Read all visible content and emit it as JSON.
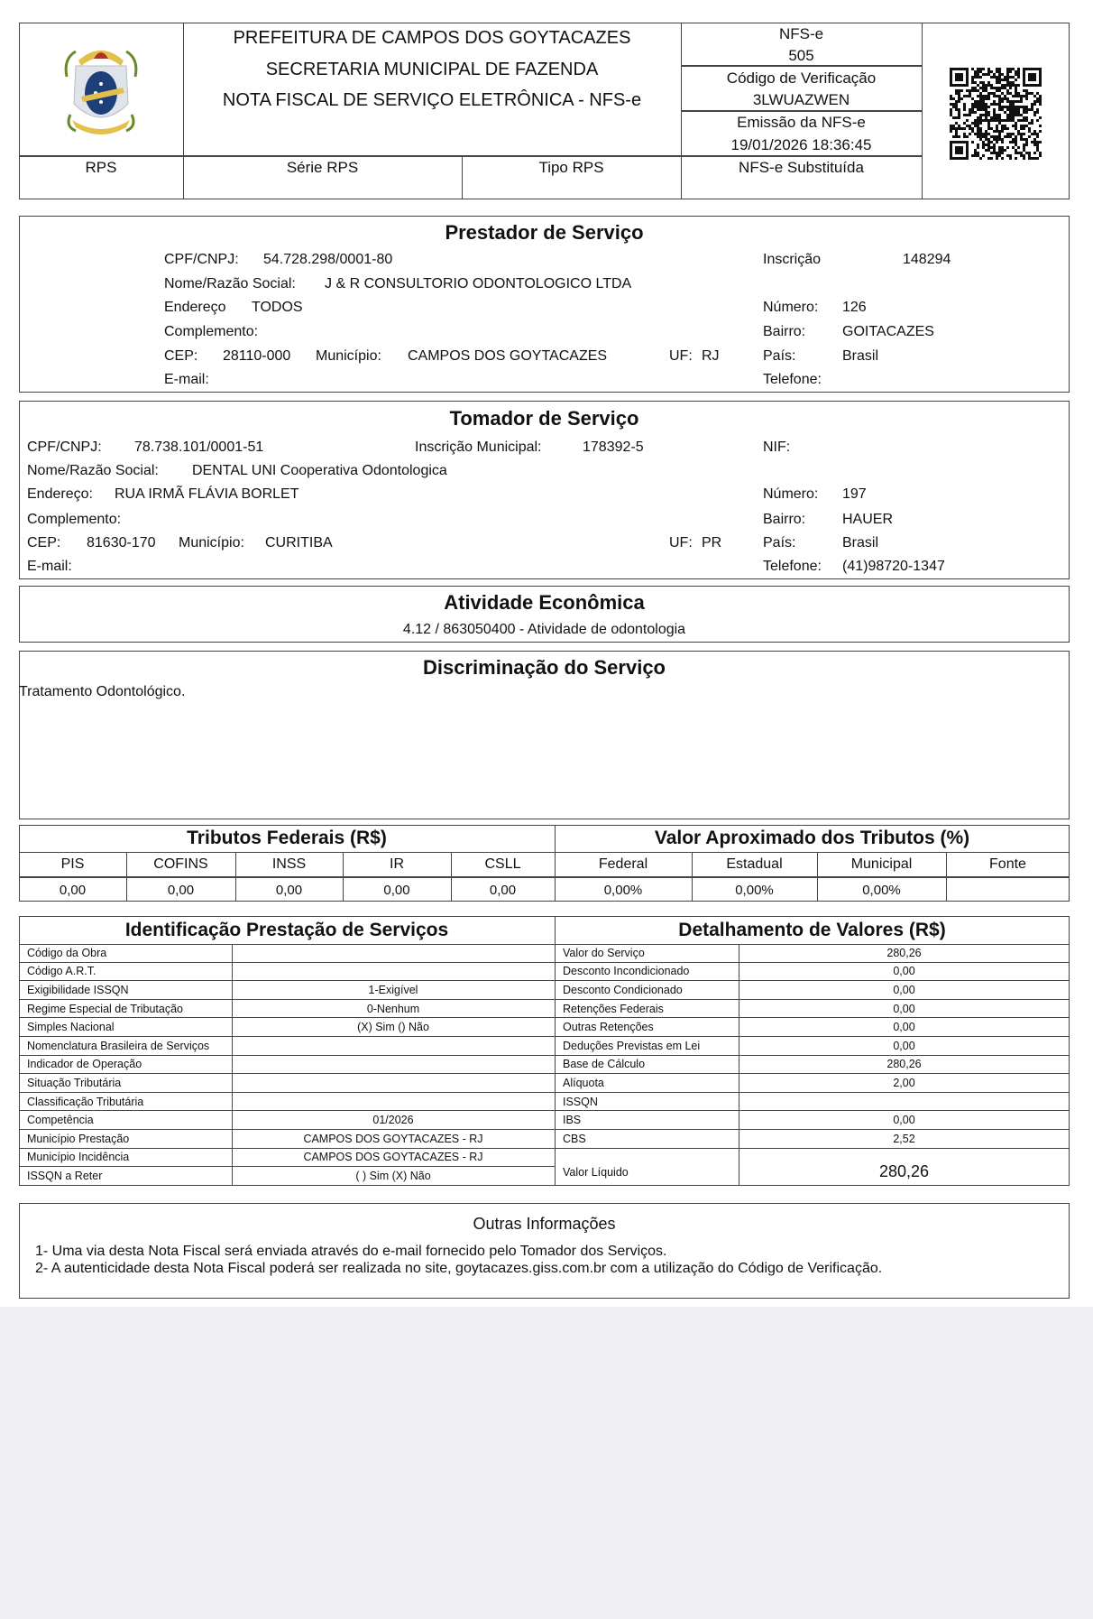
{
  "header": {
    "line1": "PREFEITURA DE CAMPOS DOS GOYTACAZES",
    "line2": "SECRETARIA MUNICIPAL DE FAZENDA",
    "line3": "NOTA FISCAL DE SERVIÇO ELETRÔNICA - NFS-e",
    "nfse_label": "NFS-e",
    "nfse_number": "505",
    "code_label": "Código de Verificação",
    "code_value": "3LWUAZWEN",
    "emission_label": "Emissão da NFS-e",
    "emission_value": "19/01/2026 18:36:45",
    "rps": "RPS",
    "serie_rps": "Série RPS",
    "tipo_rps": "Tipo RPS",
    "substituida": "NFS-e Substituída"
  },
  "prestador": {
    "title": "Prestador de Serviço",
    "cnpj_label": "CPF/CNPJ:",
    "cnpj": "54.728.298/0001-80",
    "inscricao_label": "Inscrição",
    "inscricao": "148294",
    "nome_label": "Nome/Razão Social:",
    "nome": "J & R CONSULTORIO ODONTOLOGICO LTDA",
    "endereco_label": "Endereço",
    "endereco": "TODOS",
    "numero_label": "Número:",
    "numero": "126",
    "complemento_label": "Complemento:",
    "bairro_label": "Bairro:",
    "bairro": "GOITACAZES",
    "cep_label": "CEP:",
    "cep": "28110-000",
    "municipio_label": "Município:",
    "municipio": "CAMPOS DOS GOYTACAZES",
    "uf_label": "UF:",
    "uf": "RJ",
    "pais_label": "País:",
    "pais": "Brasil",
    "email_label": "E-mail:",
    "telefone_label": "Telefone:"
  },
  "tomador": {
    "title": "Tomador de Serviço",
    "cnpj_label": "CPF/CNPJ:",
    "cnpj": "78.738.101/0001-51",
    "inscricao_label": "Inscrição Municipal:",
    "inscricao": "178392-5",
    "nif_label": "NIF:",
    "nome_label": "Nome/Razão Social:",
    "nome": "DENTAL UNI Cooperativa Odontologica",
    "endereco_label": "Endereço:",
    "endereco": "RUA IRMÃ FLÁVIA BORLET",
    "numero_label": "Número:",
    "numero": "197",
    "complemento_label": "Complemento:",
    "bairro_label": "Bairro:",
    "bairro": "HAUER",
    "cep_label": "CEP:",
    "cep": "81630-170",
    "municipio_label": "Município:",
    "municipio": "CURITIBA",
    "uf_label": "UF:",
    "uf": "PR",
    "pais_label": "País:",
    "pais": "Brasil",
    "email_label": "E-mail:",
    "telefone_label": "Telefone:",
    "telefone": "(41)98720-1347"
  },
  "atividade": {
    "title": "Atividade Econômica",
    "value": "4.12 / 863050400 - Atividade de odontologia"
  },
  "discriminacao": {
    "title": "Discriminação do Serviço",
    "text": "Tratamento Odontológico."
  },
  "tributos": {
    "federais_title": "Tributos Federais (R$)",
    "aprox_title": "Valor Aproximado dos Tributos (%)",
    "columns": [
      "PIS",
      "COFINS",
      "INSS",
      "IR",
      "CSLL",
      "Federal",
      "Estadual",
      "Municipal",
      "Fonte"
    ],
    "values": [
      "0,00",
      "0,00",
      "0,00",
      "0,00",
      "0,00",
      "0,00%",
      "0,00%",
      "0,00%",
      ""
    ]
  },
  "identificacao": {
    "title": "Identificação Prestação de Serviços",
    "rows": [
      {
        "label": "Código da Obra",
        "value": ""
      },
      {
        "label": "Código A.R.T.",
        "value": ""
      },
      {
        "label": "Exigibilidade ISSQN",
        "value": "1-Exigível"
      },
      {
        "label": "Regime Especial de Tributação",
        "value": "0-Nenhum"
      },
      {
        "label": "Simples Nacional",
        "value": "(X) Sim () Não"
      },
      {
        "label": "Nomenclatura Brasileira de Serviços",
        "value": ""
      },
      {
        "label": "Indicador de Operação",
        "value": ""
      },
      {
        "label": "Situação Tributária",
        "value": ""
      },
      {
        "label": "Classificação Tributária",
        "value": ""
      },
      {
        "label": "Competência",
        "value": "01/2026"
      },
      {
        "label": "Município Prestação",
        "value": "CAMPOS DOS GOYTACAZES - RJ"
      },
      {
        "label": "Município Incidência",
        "value": "CAMPOS DOS GOYTACAZES - RJ"
      },
      {
        "label": "ISSQN a Reter",
        "value": "( ) Sim (X) Não"
      }
    ]
  },
  "detalhamento": {
    "title": "Detalhamento de Valores (R$)",
    "rows": [
      {
        "label": "Valor do Serviço",
        "value": "280,26"
      },
      {
        "label": "Desconto Incondicionado",
        "value": "0,00"
      },
      {
        "label": "Desconto Condicionado",
        "value": "0,00"
      },
      {
        "label": "Retenções Federais",
        "value": "0,00"
      },
      {
        "label": "Outras Retenções",
        "value": "0,00"
      },
      {
        "label": "Deduções Previstas em Lei",
        "value": "0,00"
      },
      {
        "label": "Base de Cálculo",
        "value": "280,26"
      },
      {
        "label": "Alíquota",
        "value": "2,00"
      },
      {
        "label": "ISSQN",
        "value": ""
      },
      {
        "label": "IBS",
        "value": "0,00"
      },
      {
        "label": "CBS",
        "value": "2,52"
      }
    ],
    "liquido_label": "Valor Líquido",
    "liquido_value": "280,26"
  },
  "outras": {
    "title": "Outras Informações",
    "line1": "1- Uma via desta Nota Fiscal será enviada através do e-mail fornecido pelo Tomador dos Serviços.",
    "line2": "2- A autenticidade desta Nota Fiscal poderá ser realizada no site, goytacazes.giss.com.br com a utilização do Código de Verificação."
  }
}
